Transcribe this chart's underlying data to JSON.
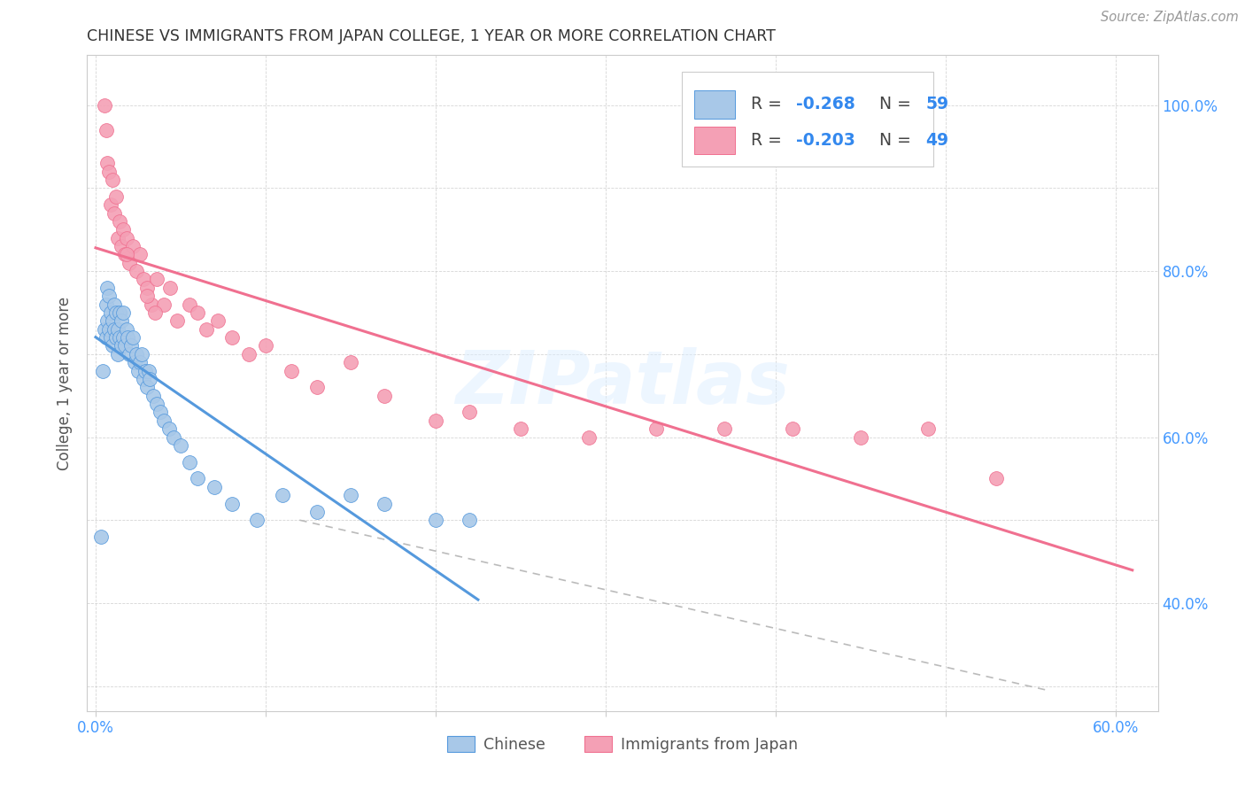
{
  "title": "CHINESE VS IMMIGRANTS FROM JAPAN COLLEGE, 1 YEAR OR MORE CORRELATION CHART",
  "source": "Source: ZipAtlas.com",
  "ylabel": "College, 1 year or more",
  "xaxis_label_chinese": "Chinese",
  "xaxis_label_japan": "Immigrants from Japan",
  "xlim": [
    -0.005,
    0.625
  ],
  "ylim": [
    0.27,
    1.06
  ],
  "R_chinese": -0.268,
  "N_chinese": 59,
  "R_japan": -0.203,
  "N_japan": 49,
  "color_chinese": "#a8c8e8",
  "color_japan": "#f4a0b5",
  "trendline_chinese_color": "#5599dd",
  "trendline_japan_color": "#f07090",
  "trendline_dashed_color": "#bbbbbb",
  "watermark": "ZIPatlas",
  "chinese_x": [
    0.003,
    0.004,
    0.005,
    0.006,
    0.006,
    0.007,
    0.007,
    0.008,
    0.008,
    0.009,
    0.009,
    0.01,
    0.01,
    0.011,
    0.011,
    0.012,
    0.012,
    0.013,
    0.013,
    0.014,
    0.014,
    0.015,
    0.015,
    0.016,
    0.016,
    0.017,
    0.018,
    0.019,
    0.02,
    0.021,
    0.022,
    0.023,
    0.024,
    0.025,
    0.026,
    0.027,
    0.028,
    0.029,
    0.03,
    0.031,
    0.032,
    0.034,
    0.036,
    0.038,
    0.04,
    0.043,
    0.046,
    0.05,
    0.055,
    0.06,
    0.07,
    0.08,
    0.095,
    0.11,
    0.13,
    0.15,
    0.17,
    0.2,
    0.22
  ],
  "chinese_y": [
    0.48,
    0.68,
    0.73,
    0.72,
    0.76,
    0.74,
    0.78,
    0.73,
    0.77,
    0.72,
    0.75,
    0.71,
    0.74,
    0.73,
    0.76,
    0.72,
    0.75,
    0.7,
    0.73,
    0.72,
    0.75,
    0.71,
    0.74,
    0.72,
    0.75,
    0.71,
    0.73,
    0.72,
    0.7,
    0.71,
    0.72,
    0.69,
    0.7,
    0.68,
    0.69,
    0.7,
    0.67,
    0.68,
    0.66,
    0.68,
    0.67,
    0.65,
    0.64,
    0.63,
    0.62,
    0.61,
    0.6,
    0.59,
    0.57,
    0.55,
    0.54,
    0.52,
    0.5,
    0.53,
    0.51,
    0.53,
    0.52,
    0.5,
    0.5
  ],
  "japan_x": [
    0.005,
    0.006,
    0.007,
    0.008,
    0.009,
    0.01,
    0.011,
    0.012,
    0.013,
    0.014,
    0.015,
    0.016,
    0.017,
    0.018,
    0.02,
    0.022,
    0.024,
    0.026,
    0.028,
    0.03,
    0.033,
    0.036,
    0.04,
    0.044,
    0.048,
    0.055,
    0.06,
    0.065,
    0.072,
    0.08,
    0.09,
    0.1,
    0.115,
    0.13,
    0.15,
    0.17,
    0.2,
    0.22,
    0.25,
    0.29,
    0.33,
    0.37,
    0.41,
    0.45,
    0.49,
    0.53,
    0.03,
    0.035,
    0.018
  ],
  "japan_y": [
    1.0,
    0.97,
    0.93,
    0.92,
    0.88,
    0.91,
    0.87,
    0.89,
    0.84,
    0.86,
    0.83,
    0.85,
    0.82,
    0.84,
    0.81,
    0.83,
    0.8,
    0.82,
    0.79,
    0.78,
    0.76,
    0.79,
    0.76,
    0.78,
    0.74,
    0.76,
    0.75,
    0.73,
    0.74,
    0.72,
    0.7,
    0.71,
    0.68,
    0.66,
    0.69,
    0.65,
    0.62,
    0.63,
    0.61,
    0.6,
    0.61,
    0.61,
    0.61,
    0.6,
    0.61,
    0.55,
    0.77,
    0.75,
    0.82
  ]
}
